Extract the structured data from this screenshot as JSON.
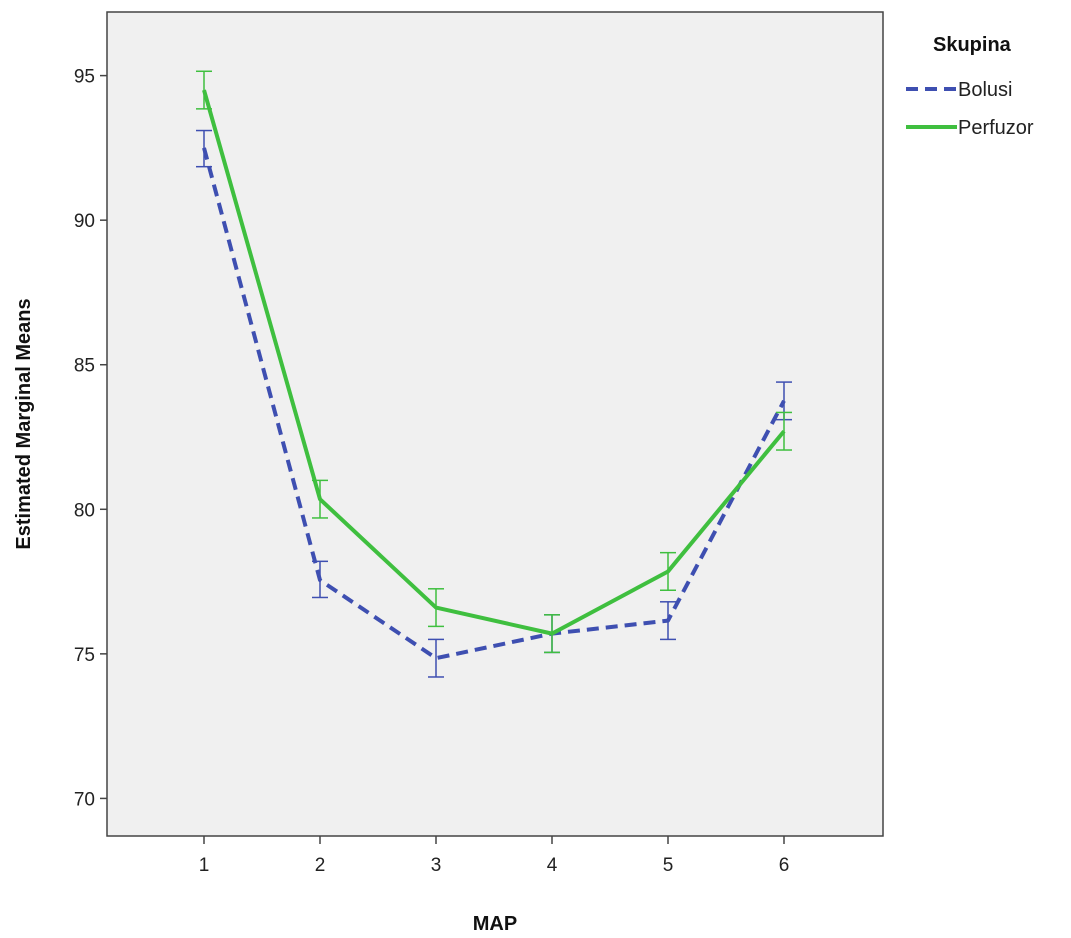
{
  "chart_data": {
    "type": "line",
    "title": "",
    "xlabel": "MAP",
    "ylabel": "Estimated Marginal Means",
    "categories": [
      "1",
      "2",
      "3",
      "4",
      "5",
      "6"
    ],
    "ylim": [
      68.7,
      97.2
    ],
    "yticks": [
      70,
      75,
      80,
      85,
      90,
      95
    ],
    "grid": false,
    "legend": {
      "title": "Skupina",
      "position": "top-right"
    },
    "series": [
      {
        "name": "Bolusi",
        "color": "#3e4fb1",
        "dash": "dashed",
        "values": [
          92.5,
          77.55,
          74.85,
          75.7,
          76.15,
          83.75
        ],
        "err_low": [
          91.85,
          76.95,
          74.2,
          75.05,
          75.5,
          83.1
        ],
        "err_high": [
          93.1,
          78.2,
          75.5,
          76.35,
          76.8,
          84.4
        ]
      },
      {
        "name": "Perfuzor",
        "color": "#3fbf3f",
        "dash": "solid",
        "values": [
          94.5,
          80.35,
          76.6,
          75.7,
          77.85,
          82.7
        ],
        "err_low": [
          93.85,
          79.7,
          75.95,
          75.05,
          77.2,
          82.05
        ],
        "err_high": [
          95.15,
          81.0,
          77.25,
          76.35,
          78.5,
          83.35
        ]
      }
    ]
  }
}
